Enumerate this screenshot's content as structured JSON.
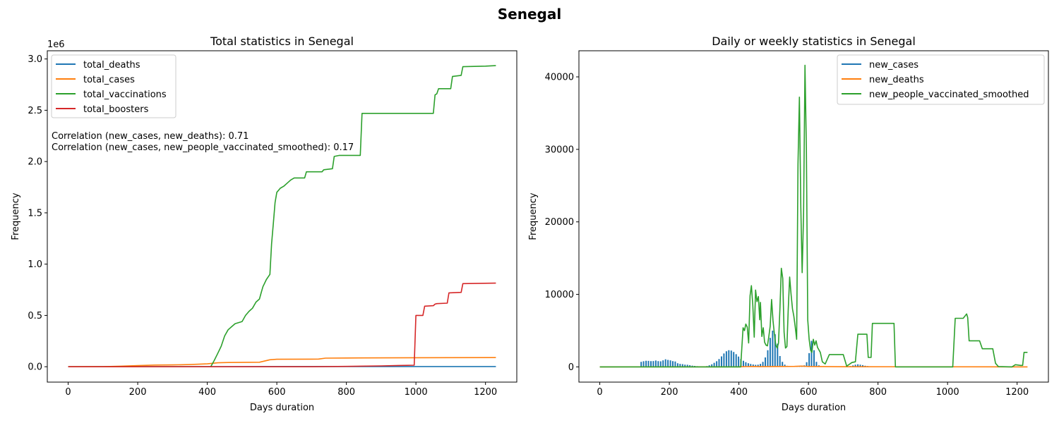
{
  "figure": {
    "suptitle": "Senegal"
  },
  "colors": {
    "blue": "#1f77b4",
    "orange": "#ff7f0e",
    "green": "#2ca02c",
    "red": "#d62728"
  },
  "chart_data": [
    {
      "type": "line",
      "title": "Total statistics in Senegal",
      "xlabel": "Days duration",
      "ylabel": "Frequency",
      "xlim": [
        -60,
        1290
      ],
      "ylim": [
        -150000,
        3080000
      ],
      "xticks": [
        0,
        200,
        400,
        600,
        800,
        1000,
        1200
      ],
      "xtick_labels": [
        "0",
        "200",
        "400",
        "600",
        "800",
        "1000",
        "1200"
      ],
      "yticks": [
        0,
        500000,
        1000000,
        1500000,
        2000000,
        2500000,
        3000000
      ],
      "ytick_labels": [
        "0.0",
        "0.5",
        "1.0",
        "1.5",
        "2.0",
        "2.5",
        "3.0"
      ],
      "y_offset_label": "1e6",
      "legend_position": "upper-left",
      "annotations": [
        "Correlation (new_cases, new_deaths): 0.71",
        "Correlation (new_cases, new_people_vaccinated_smoothed): 0.17"
      ],
      "series": [
        {
          "name": "total_deaths",
          "color": "#1f77b4",
          "points": [
            [
              0,
              0
            ],
            [
              150,
              500
            ],
            [
              300,
              1000
            ],
            [
              420,
              1200
            ],
            [
              600,
              1750
            ],
            [
              800,
              1900
            ],
            [
              1000,
              1960
            ],
            [
              1230,
              1990
            ]
          ]
        },
        {
          "name": "total_cases",
          "color": "#ff7f0e",
          "points": [
            [
              0,
              0
            ],
            [
              100,
              1500
            ],
            [
              150,
              5000
            ],
            [
              200,
              11000
            ],
            [
              250,
              16000
            ],
            [
              300,
              18000
            ],
            [
              350,
              21000
            ],
            [
              400,
              28000
            ],
            [
              430,
              38000
            ],
            [
              460,
              41000
            ],
            [
              550,
              44000
            ],
            [
              580,
              68000
            ],
            [
              600,
              73000
            ],
            [
              700,
              74000
            ],
            [
              720,
              75000
            ],
            [
              740,
              84000
            ],
            [
              800,
              85000
            ],
            [
              1000,
              88000
            ],
            [
              1230,
              89000
            ]
          ]
        },
        {
          "name": "total_vaccinations",
          "color": "#2ca02c",
          "points": [
            [
              0,
              0
            ],
            [
              410,
              0
            ],
            [
              420,
              60000
            ],
            [
              430,
              130000
            ],
            [
              440,
              200000
            ],
            [
              450,
              300000
            ],
            [
              460,
              360000
            ],
            [
              470,
              390000
            ],
            [
              480,
              420000
            ],
            [
              500,
              440000
            ],
            [
              510,
              500000
            ],
            [
              520,
              540000
            ],
            [
              530,
              570000
            ],
            [
              540,
              630000
            ],
            [
              550,
              660000
            ],
            [
              555,
              720000
            ],
            [
              560,
              780000
            ],
            [
              570,
              850000
            ],
            [
              580,
              900000
            ],
            [
              585,
              1200000
            ],
            [
              590,
              1400000
            ],
            [
              595,
              1600000
            ],
            [
              600,
              1700000
            ],
            [
              610,
              1740000
            ],
            [
              620,
              1760000
            ],
            [
              630,
              1790000
            ],
            [
              640,
              1820000
            ],
            [
              650,
              1840000
            ],
            [
              680,
              1840000
            ],
            [
              685,
              1900000
            ],
            [
              730,
              1900000
            ],
            [
              735,
              1920000
            ],
            [
              760,
              1930000
            ],
            [
              765,
              2050000
            ],
            [
              780,
              2060000
            ],
            [
              840,
              2060000
            ],
            [
              845,
              2470000
            ],
            [
              1050,
              2470000
            ],
            [
              1055,
              2650000
            ],
            [
              1060,
              2660000
            ],
            [
              1065,
              2710000
            ],
            [
              1100,
              2710000
            ],
            [
              1105,
              2830000
            ],
            [
              1130,
              2840000
            ],
            [
              1135,
              2925000
            ],
            [
              1200,
              2930000
            ],
            [
              1230,
              2935000
            ]
          ]
        },
        {
          "name": "total_boosters",
          "color": "#d62728",
          "points": [
            [
              0,
              0
            ],
            [
              700,
              0
            ],
            [
              800,
              3000
            ],
            [
              900,
              8000
            ],
            [
              950,
              12000
            ],
            [
              995,
              15000
            ],
            [
              1000,
              500000
            ],
            [
              1020,
              500000
            ],
            [
              1025,
              590000
            ],
            [
              1050,
              595000
            ],
            [
              1055,
              610000
            ],
            [
              1060,
              615000
            ],
            [
              1090,
              620000
            ],
            [
              1095,
              720000
            ],
            [
              1130,
              725000
            ],
            [
              1135,
              810000
            ],
            [
              1230,
              815000
            ]
          ]
        }
      ]
    },
    {
      "type": "line",
      "title": "Daily or weekly statistics in Senegal",
      "xlabel": "Days duration",
      "ylabel": "Frequency",
      "xlim": [
        -60,
        1290
      ],
      "ylim": [
        -2100,
        43600
      ],
      "xticks": [
        0,
        200,
        400,
        600,
        800,
        1000,
        1200
      ],
      "xtick_labels": [
        "0",
        "200",
        "400",
        "600",
        "800",
        "1000",
        "1200"
      ],
      "yticks": [
        0,
        10000,
        20000,
        30000,
        40000
      ],
      "ytick_labels": [
        "0",
        "10000",
        "20000",
        "30000",
        "40000"
      ],
      "legend_position": "upper-right",
      "case_spikes": {
        "start": 119,
        "step": 7,
        "values": [
          700,
          780,
          850,
          830,
          800,
          810,
          880,
          800,
          770,
          900,
          1050,
          960,
          900,
          800,
          750,
          500,
          420,
          380,
          310,
          290,
          230,
          180,
          140,
          100,
          80,
          60,
          80,
          120,
          220,
          350,
          560,
          780,
          1080,
          1450,
          1850,
          2150,
          2300,
          2250,
          2050,
          1750,
          1420,
          1100,
          840,
          650,
          500,
          400,
          330,
          280,
          300,
          420,
          700,
          1300,
          2300,
          4000,
          5000,
          4500,
          3200,
          1500,
          700,
          300,
          150,
          80,
          50,
          40,
          40,
          50,
          90,
          200,
          650,
          1900,
          3600,
          2300,
          700,
          200,
          80,
          50,
          40,
          30,
          30,
          30,
          30,
          30,
          40,
          50,
          60,
          80,
          120,
          200,
          310,
          360,
          300,
          240,
          170,
          110,
          70,
          50,
          40,
          30,
          30,
          30,
          20,
          20,
          20,
          20,
          20,
          20,
          20,
          20,
          20,
          20,
          20,
          20,
          20,
          20,
          20,
          20,
          20,
          20,
          20,
          20
        ]
      },
      "series": [
        {
          "name": "new_cases",
          "color": "#1f77b4",
          "points": []
        },
        {
          "name": "new_deaths",
          "color": "#ff7f0e",
          "points": [
            [
              0,
              0
            ],
            [
              400,
              10
            ],
            [
              420,
              40
            ],
            [
              440,
              60
            ],
            [
              460,
              30
            ],
            [
              560,
              70
            ],
            [
              580,
              110
            ],
            [
              600,
              60
            ],
            [
              700,
              20
            ],
            [
              1230,
              5
            ]
          ]
        },
        {
          "name": "new_people_vaccinated_smoothed",
          "color": "#2ca02c",
          "points": [
            [
              0,
              0
            ],
            [
              405,
              0
            ],
            [
              412,
              5400
            ],
            [
              416,
              5000
            ],
            [
              420,
              5900
            ],
            [
              424,
              5500
            ],
            [
              428,
              3300
            ],
            [
              432,
              9800
            ],
            [
              436,
              11200
            ],
            [
              440,
              8500
            ],
            [
              444,
              4100
            ],
            [
              448,
              10600
            ],
            [
              452,
              9000
            ],
            [
              456,
              9700
            ],
            [
              460,
              6500
            ],
            [
              462,
              8900
            ],
            [
              466,
              4200
            ],
            [
              470,
              5400
            ],
            [
              474,
              3400
            ],
            [
              478,
              3000
            ],
            [
              482,
              2900
            ],
            [
              486,
              4200
            ],
            [
              490,
              5600
            ],
            [
              494,
              9300
            ],
            [
              498,
              6400
            ],
            [
              502,
              4600
            ],
            [
              506,
              3000
            ],
            [
              510,
              2600
            ],
            [
              514,
              3300
            ],
            [
              518,
              8000
            ],
            [
              522,
              13600
            ],
            [
              526,
              12200
            ],
            [
              530,
              4800
            ],
            [
              534,
              2600
            ],
            [
              538,
              2800
            ],
            [
              542,
              8000
            ],
            [
              546,
              12400
            ],
            [
              550,
              10000
            ],
            [
              554,
              8000
            ],
            [
              558,
              7000
            ],
            [
              562,
              5500
            ],
            [
              566,
              3800
            ],
            [
              570,
              28000
            ],
            [
              574,
              37200
            ],
            [
              578,
              22000
            ],
            [
              582,
              13000
            ],
            [
              586,
              21000
            ],
            [
              590,
              41600
            ],
            [
              594,
              30000
            ],
            [
              598,
              6500
            ],
            [
              602,
              3800
            ],
            [
              606,
              2300
            ],
            [
              610,
              2000
            ],
            [
              614,
              3800
            ],
            [
              618,
              3000
            ],
            [
              622,
              3600
            ],
            [
              626,
              2700
            ],
            [
              634,
              2000
            ],
            [
              640,
              700
            ],
            [
              648,
              400
            ],
            [
              660,
              1700
            ],
            [
              700,
              1700
            ],
            [
              710,
              100
            ],
            [
              725,
              600
            ],
            [
              735,
              700
            ],
            [
              742,
              4500
            ],
            [
              768,
              4500
            ],
            [
              772,
              1300
            ],
            [
              780,
              1300
            ],
            [
              784,
              6000
            ],
            [
              846,
              6000
            ],
            [
              850,
              0
            ],
            [
              1015,
              0
            ],
            [
              1022,
              6700
            ],
            [
              1045,
              6700
            ],
            [
              1055,
              7300
            ],
            [
              1058,
              6800
            ],
            [
              1062,
              3600
            ],
            [
              1092,
              3600
            ],
            [
              1100,
              2500
            ],
            [
              1130,
              2500
            ],
            [
              1138,
              500
            ],
            [
              1146,
              50
            ],
            [
              1185,
              0
            ],
            [
              1195,
              300
            ],
            [
              1210,
              200
            ],
            [
              1216,
              200
            ],
            [
              1220,
              2000
            ],
            [
              1230,
              2000
            ]
          ]
        }
      ]
    }
  ]
}
